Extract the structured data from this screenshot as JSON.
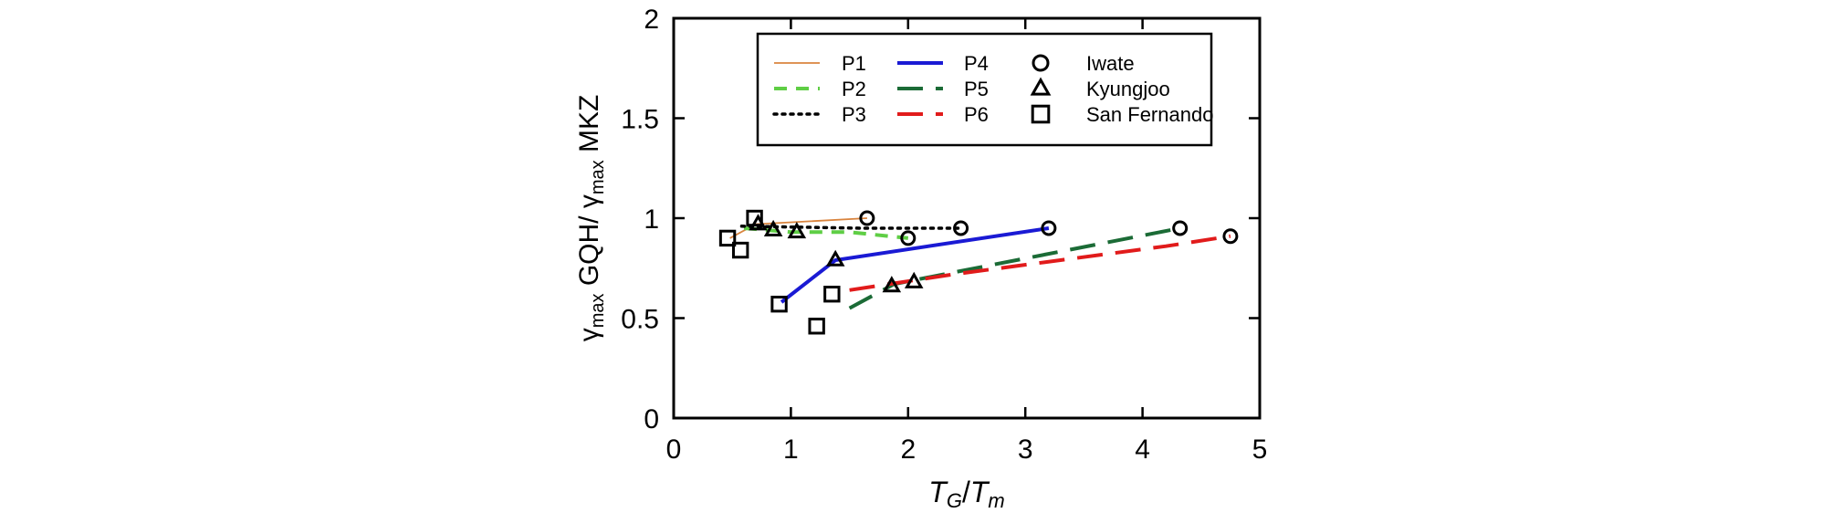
{
  "chart_data": {
    "type": "scatter",
    "xlim": [
      0,
      5
    ],
    "ylim": [
      0,
      2
    ],
    "x_ticks": [
      0,
      1,
      2,
      3,
      4,
      5
    ],
    "x_tick_labels": [
      "0",
      "1",
      "2",
      "3",
      "4",
      "5"
    ],
    "y_ticks": [
      0,
      0.5,
      1,
      1.5,
      2
    ],
    "y_tick_labels": [
      "0",
      "0.5",
      "1",
      "1.5",
      "2"
    ],
    "xlabel": {
      "T1": "T",
      "s1": "G",
      "sep": "/",
      "T2": "T",
      "s2": "m"
    },
    "ylabel": {
      "g1": "γ",
      "s1": "max",
      "a": " GQH/ ",
      "g2": "γ",
      "s2": "max",
      "b": " MKZ"
    },
    "grid": false,
    "legend_position": "top-right",
    "legend": {
      "lines": [
        {
          "label": "P1",
          "color": "#d9843e",
          "style": "thin"
        },
        {
          "label": "P2",
          "color": "#5fce45",
          "style": "dash"
        },
        {
          "label": "P3",
          "color": "#000000",
          "style": "dot"
        },
        {
          "label": "P4",
          "color": "#1a1ad4",
          "style": "solid"
        },
        {
          "label": "P5",
          "color": "#1b6b36",
          "style": "longdash"
        },
        {
          "label": "P6",
          "color": "#e11b1b",
          "style": "longdash"
        }
      ],
      "markers": [
        {
          "label": "Iwate",
          "shape": "circle"
        },
        {
          "label": "Kyungjoo",
          "shape": "triangle"
        },
        {
          "label": "San Fernando",
          "shape": "square"
        }
      ]
    },
    "series": [
      {
        "name": "P1",
        "color": "#d9843e",
        "points": [
          [
            0.48,
            0.9
          ],
          [
            0.7,
            0.97
          ],
          [
            1.65,
            1.0
          ]
        ]
      },
      {
        "name": "P2",
        "color": "#5fce45",
        "points": [
          [
            0.6,
            0.95
          ],
          [
            1.0,
            0.93
          ],
          [
            1.5,
            0.93
          ],
          [
            2.0,
            0.9
          ]
        ]
      },
      {
        "name": "P3",
        "color": "#000000",
        "points": [
          [
            0.58,
            0.96
          ],
          [
            1.6,
            0.95
          ],
          [
            2.45,
            0.95
          ]
        ]
      },
      {
        "name": "P4",
        "color": "#1a1ad4",
        "points": [
          [
            0.92,
            0.58
          ],
          [
            1.38,
            0.79
          ],
          [
            3.2,
            0.95
          ]
        ]
      },
      {
        "name": "P5",
        "color": "#1b6b36",
        "points": [
          [
            1.5,
            0.55
          ],
          [
            1.88,
            0.67
          ],
          [
            2.05,
            0.69
          ],
          [
            4.32,
            0.95
          ]
        ]
      },
      {
        "name": "P6",
        "color": "#e11b1b",
        "points": [
          [
            1.5,
            0.64
          ],
          [
            2.4,
            0.72
          ],
          [
            3.3,
            0.79
          ],
          [
            4.2,
            0.86
          ],
          [
            4.75,
            0.91
          ]
        ]
      }
    ],
    "markers": {
      "Iwate": [
        [
          1.65,
          1.0
        ],
        [
          2.0,
          0.9
        ],
        [
          2.45,
          0.95
        ],
        [
          3.2,
          0.95
        ],
        [
          4.32,
          0.95
        ],
        [
          4.75,
          0.91
        ]
      ],
      "Kyungjoo": [
        [
          0.72,
          0.97
        ],
        [
          0.85,
          0.94
        ],
        [
          1.05,
          0.93
        ],
        [
          1.38,
          0.79
        ],
        [
          1.86,
          0.66
        ],
        [
          2.05,
          0.68
        ]
      ],
      "San Fernando": [
        [
          0.46,
          0.9
        ],
        [
          0.57,
          0.84
        ],
        [
          0.69,
          1.0
        ],
        [
          0.9,
          0.57
        ],
        [
          1.22,
          0.46
        ],
        [
          1.35,
          0.62
        ]
      ]
    }
  }
}
